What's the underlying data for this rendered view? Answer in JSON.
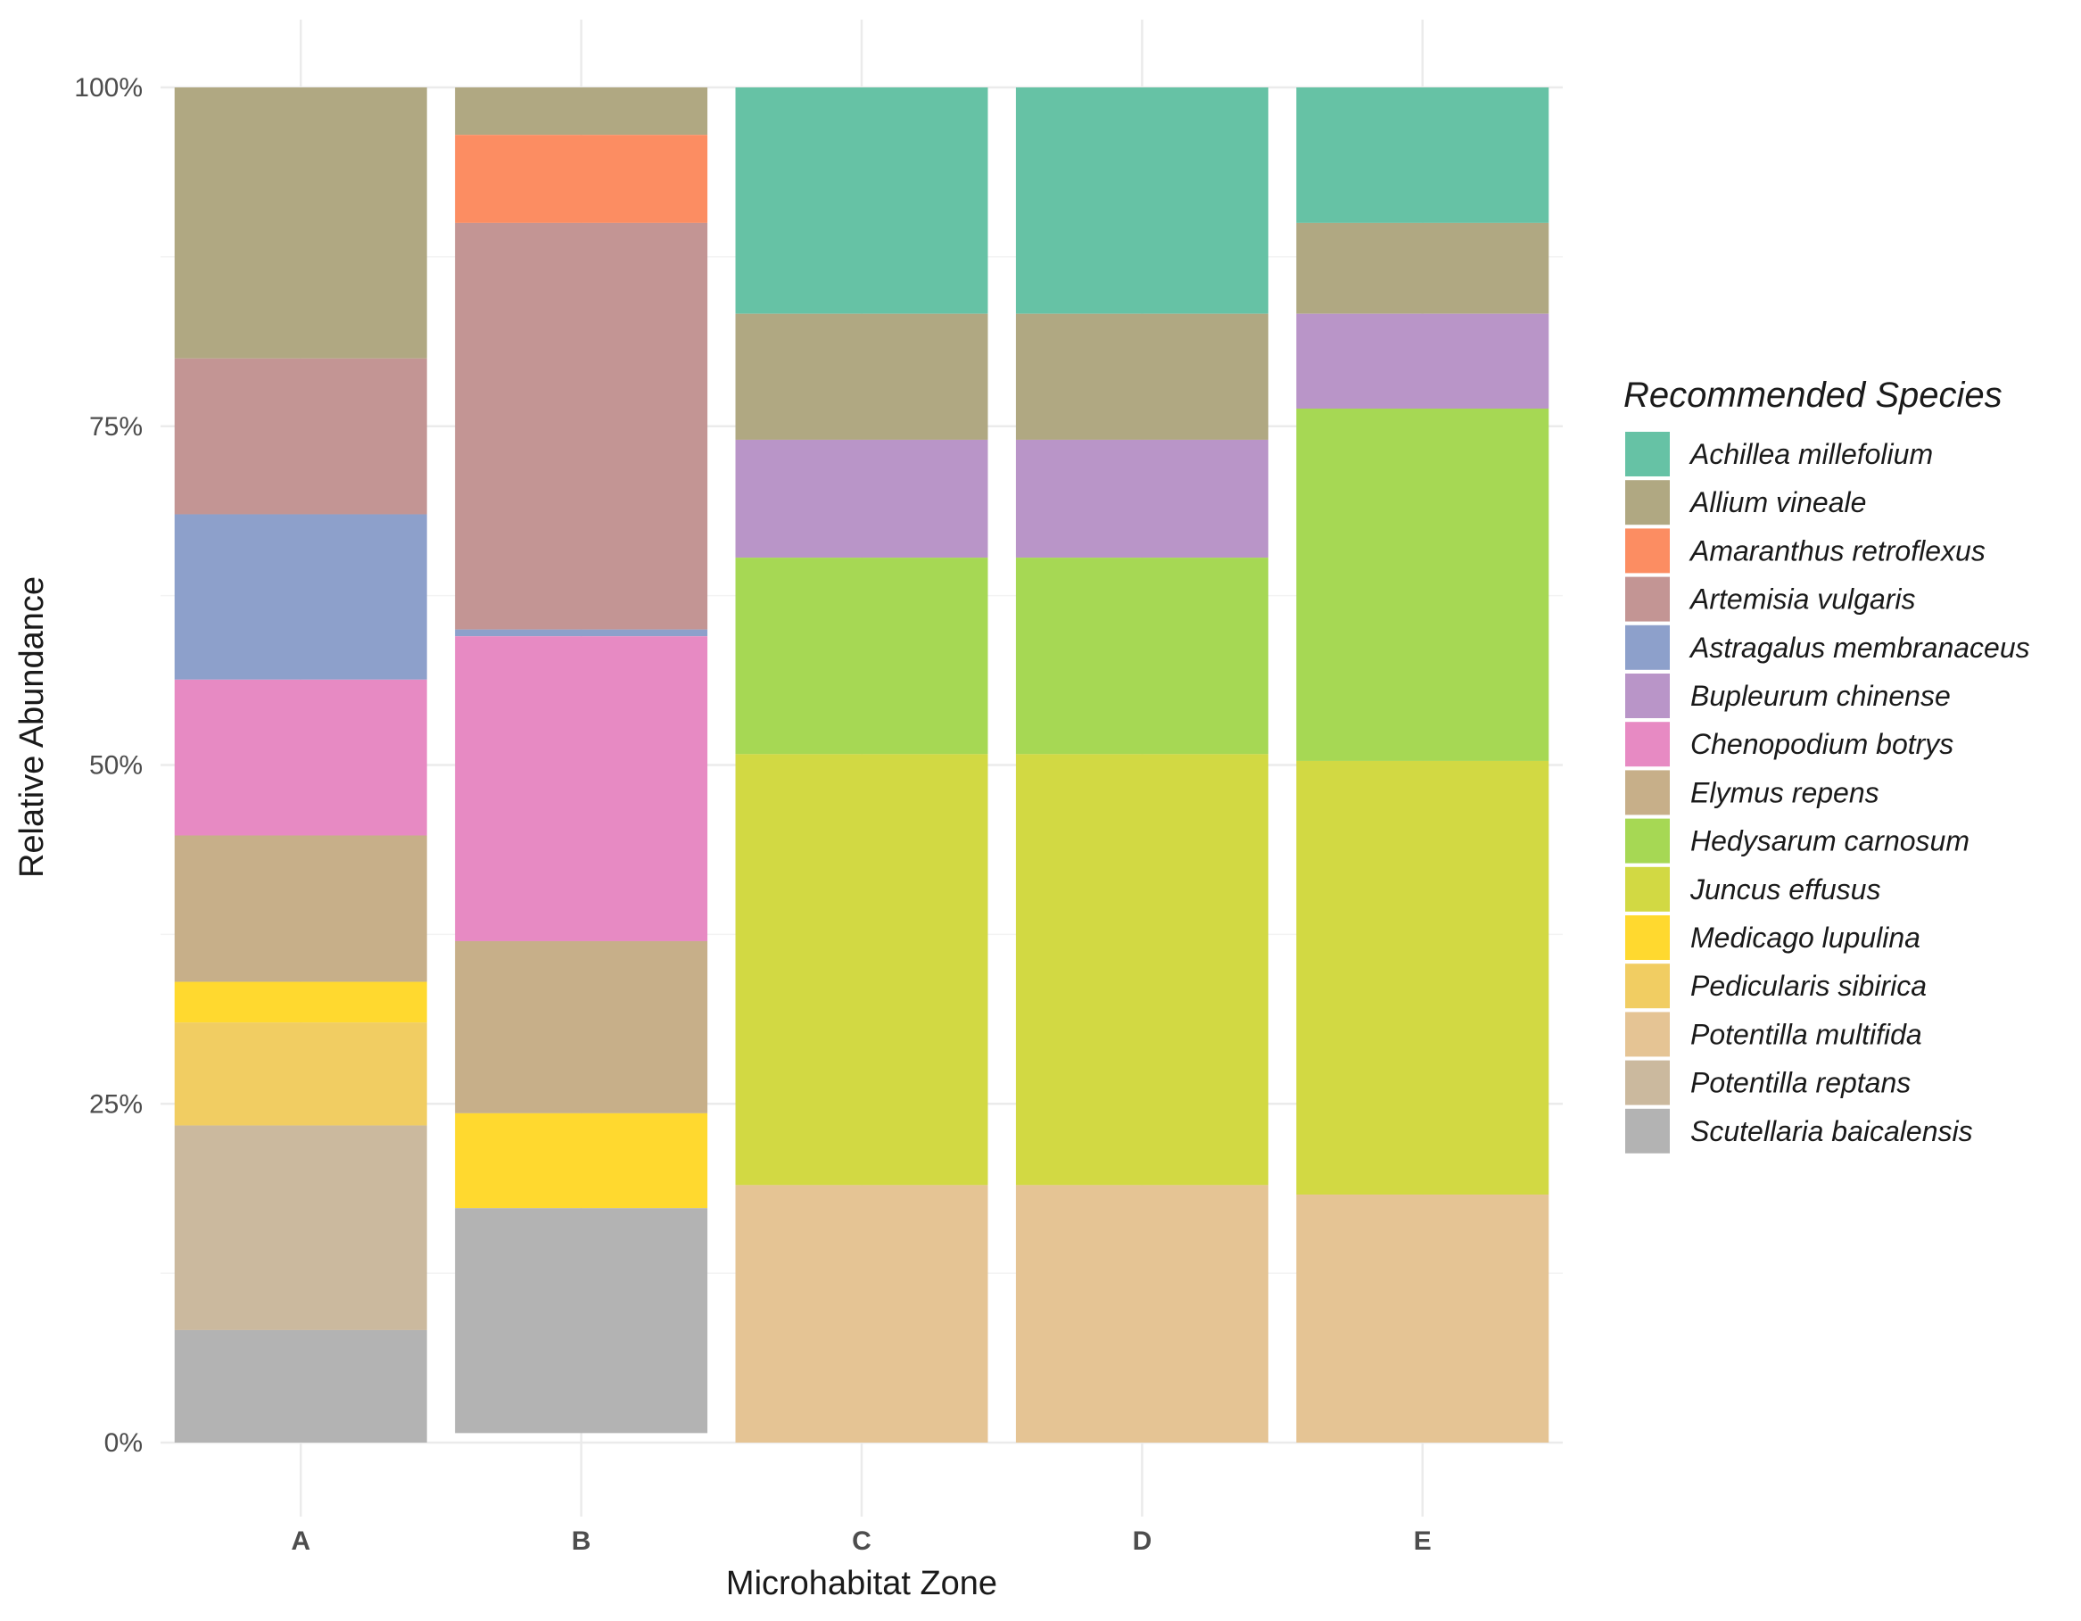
{
  "chart_data": {
    "type": "bar",
    "stacked": true,
    "normalized": true,
    "xlabel": "Microhabitat Zone",
    "ylabel": "Relative Abundance",
    "ylim": [
      0,
      1
    ],
    "y_ticks": [
      {
        "value": 0,
        "label": "0%"
      },
      {
        "value": 0.25,
        "label": "25%"
      },
      {
        "value": 0.5,
        "label": "50%"
      },
      {
        "value": 0.75,
        "label": "75%"
      },
      {
        "value": 1,
        "label": "100%"
      }
    ],
    "grid": true,
    "legend_title": "Recommended Species",
    "legend_position": "right",
    "categories": [
      "A",
      "B",
      "C",
      "D",
      "E"
    ],
    "series": [
      {
        "name": "Achillea millefolium",
        "color": "#66C2A5",
        "values": [
          0,
          0,
          0.167,
          0.167,
          0.1
        ]
      },
      {
        "name": "Allium vineale",
        "color": "#B0A882",
        "values": [
          0.2,
          0.035,
          0.093,
          0.093,
          0.067
        ]
      },
      {
        "name": "Amaranthus retroflexus",
        "color": "#FC8D62",
        "values": [
          0,
          0.065,
          0,
          0,
          0
        ]
      },
      {
        "name": "Artemisia vulgaris",
        "color": "#C39594",
        "values": [
          0.115,
          0.3,
          0,
          0,
          0
        ]
      },
      {
        "name": "Astragalus membranaceus",
        "color": "#8DA0CB",
        "values": [
          0.122,
          0.005,
          0,
          0,
          0
        ]
      },
      {
        "name": "Bupleurum chinense",
        "color": "#B995C8",
        "values": [
          0,
          0,
          0.087,
          0.087,
          0.07
        ]
      },
      {
        "name": "Chenopodium botrys",
        "color": "#E78AC3",
        "values": [
          0.115,
          0.225,
          0,
          0,
          0
        ]
      },
      {
        "name": "Elymus repens",
        "color": "#C7AF89",
        "values": [
          0.108,
          0.127,
          0,
          0,
          0
        ]
      },
      {
        "name": "Hedysarum carnosum",
        "color": "#A6D854",
        "values": [
          0,
          0,
          0.145,
          0.145,
          0.26
        ]
      },
      {
        "name": "Juncus effusus",
        "color": "#D2D943",
        "values": [
          0,
          0,
          0.318,
          0.318,
          0.32
        ]
      },
      {
        "name": "Medicago lupulina",
        "color": "#FFD92F",
        "values": [
          0.03,
          0.07,
          0,
          0,
          0
        ]
      },
      {
        "name": "Pedicularis sibirica",
        "color": "#F1CD62",
        "values": [
          0.076,
          0,
          0,
          0,
          0
        ]
      },
      {
        "name": "Potentilla multifida",
        "color": "#E5C494",
        "values": [
          0,
          0,
          0.19,
          0.19,
          0.183
        ]
      },
      {
        "name": "Potentilla reptans",
        "color": "#CBB99E",
        "values": [
          0.151,
          0,
          0,
          0,
          0
        ]
      },
      {
        "name": "Scutellaria baicalensis",
        "color": "#B3B3B3",
        "values": [
          0.083,
          0.166,
          0,
          0,
          0
        ]
      }
    ]
  }
}
